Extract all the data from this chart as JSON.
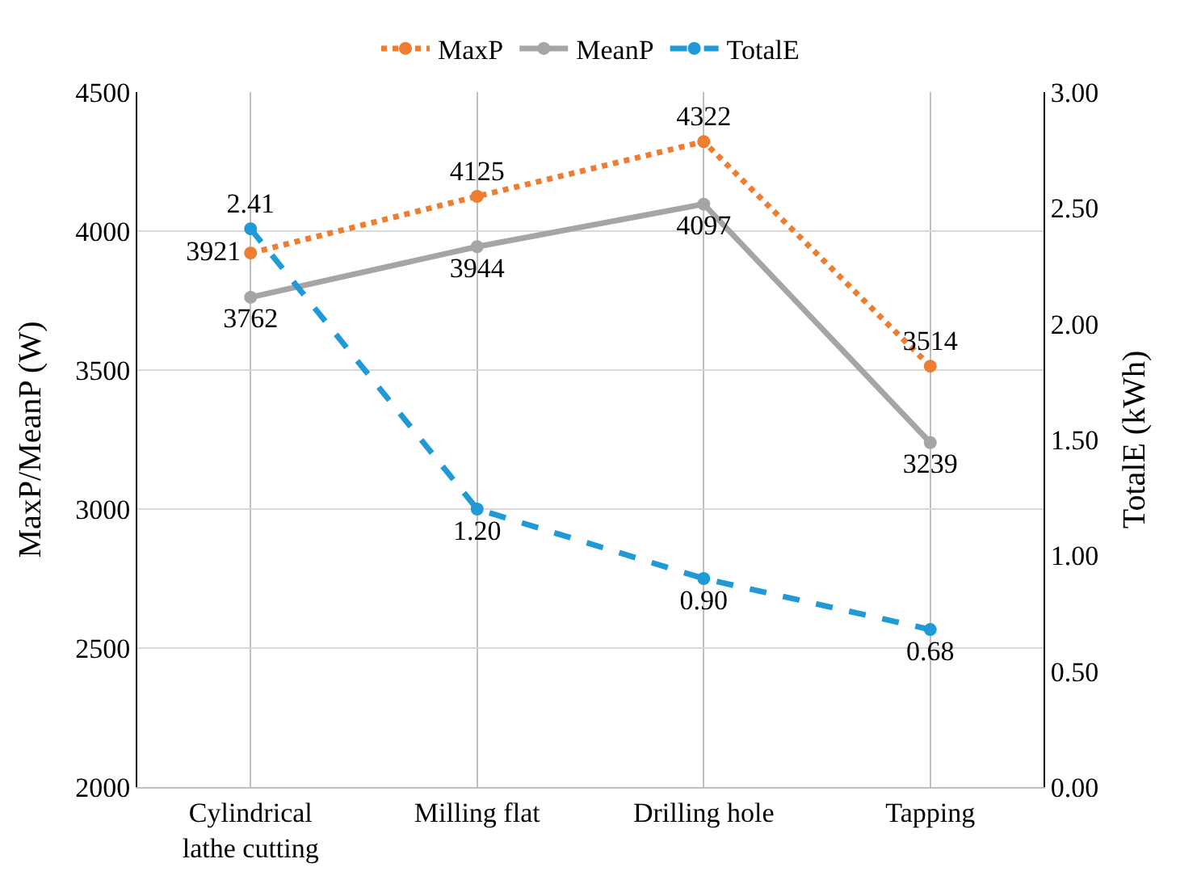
{
  "chart_data": {
    "type": "line",
    "categories": [
      "Cylindrical lathe cutting",
      "Milling flat",
      "Drilling hole",
      "Tapping"
    ],
    "ylabel": "MaxP/MeanP (W)",
    "y2label": "TotalE (kWh)",
    "ylim": [
      2000,
      4500
    ],
    "yticks": [
      2000,
      2500,
      3000,
      3500,
      4000,
      4500
    ],
    "y2lim": [
      0,
      3
    ],
    "y2ticks": [
      {
        "value": 0,
        "label": "0.00"
      },
      {
        "value": 0.5,
        "label": "0.50"
      },
      {
        "value": 1,
        "label": "1.00"
      },
      {
        "value": 1.5,
        "label": "1.50"
      },
      {
        "value": 2,
        "label": "2.00"
      },
      {
        "value": 2.5,
        "label": "2.50"
      },
      {
        "value": 3,
        "label": "3.00"
      }
    ],
    "grid": true,
    "legend": "top",
    "marker": "circle",
    "series": [
      {
        "name": "MaxP",
        "color": "#ed7d31",
        "values": [
          3921,
          4125,
          4322,
          3514
        ],
        "value_labels": [
          "3921",
          "4125",
          "4322",
          "3514"
        ],
        "line_style": "dotted"
      },
      {
        "name": "MeanP",
        "color": "#a5a5a5",
        "values": [
          3762,
          3944,
          4097,
          3239
        ],
        "value_labels": [
          "3762",
          "3944",
          "4097",
          "3239"
        ],
        "line_style": "solid"
      },
      {
        "name": "TotalE",
        "color": "#1f9ad6",
        "values": [
          2.41,
          1.2,
          0.9,
          0.68
        ],
        "value_labels": [
          "2.41",
          "1.20",
          "0.90",
          "0.68"
        ],
        "line_style": "dashed",
        "axis": "y2"
      }
    ]
  }
}
